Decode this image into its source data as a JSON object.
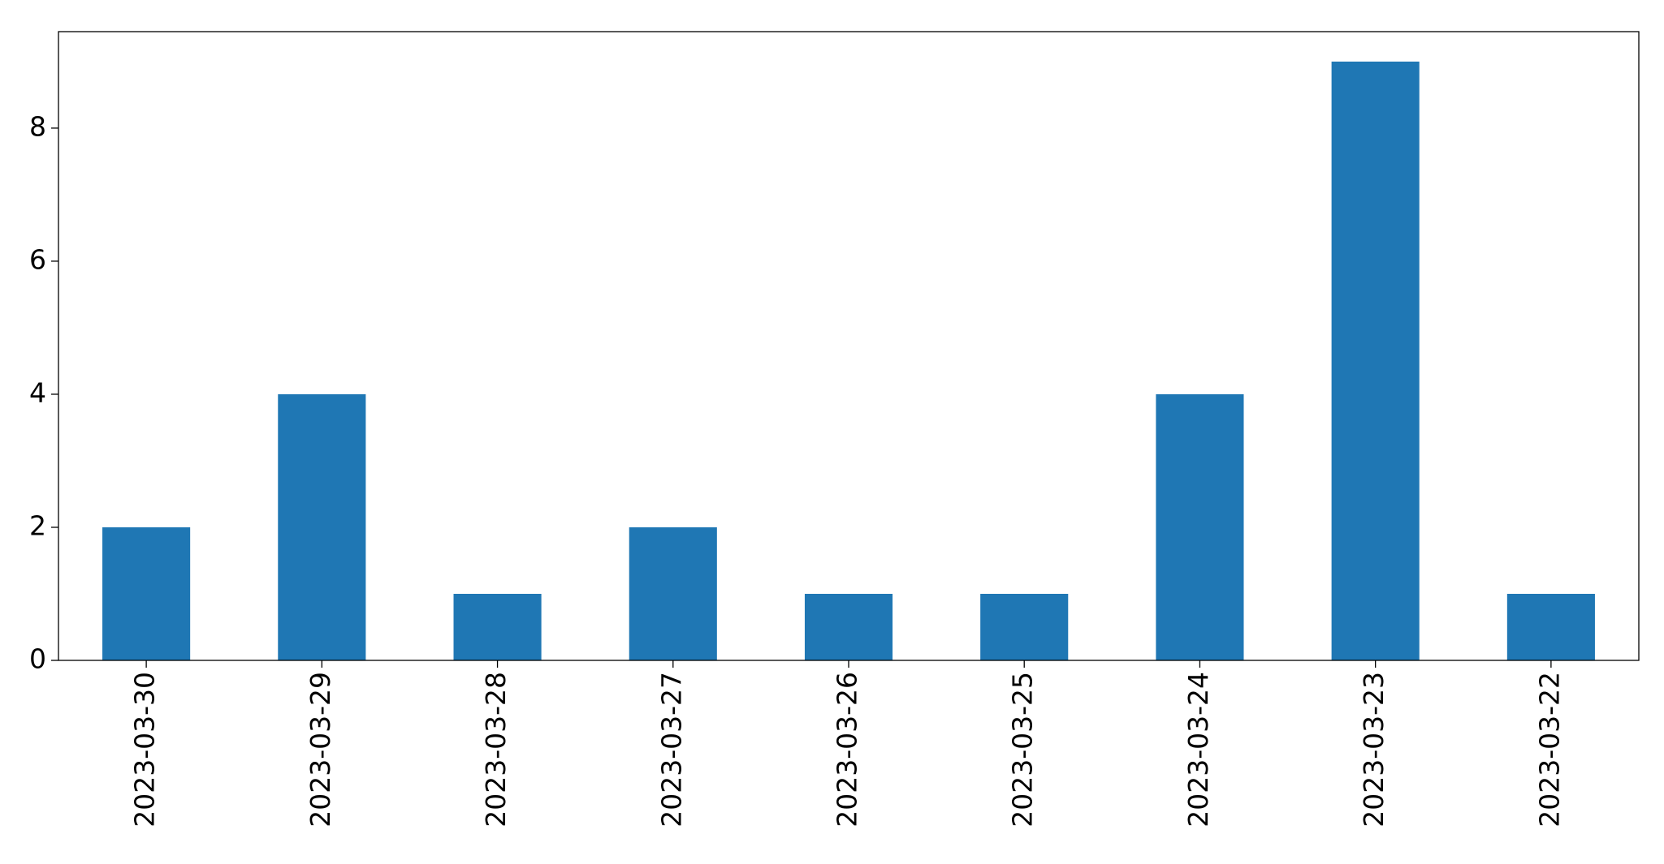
{
  "chart_data": {
    "type": "bar",
    "categories": [
      "2023-03-30",
      "2023-03-29",
      "2023-03-28",
      "2023-03-27",
      "2023-03-26",
      "2023-03-25",
      "2023-03-24",
      "2023-03-23",
      "2023-03-22"
    ],
    "values": [
      2,
      4,
      1,
      2,
      1,
      1,
      4,
      9,
      1
    ],
    "color": "#1f77b4",
    "ylim": [
      0,
      9.45
    ],
    "yticks": [
      0,
      2,
      4,
      6,
      8
    ],
    "grid": false
  }
}
